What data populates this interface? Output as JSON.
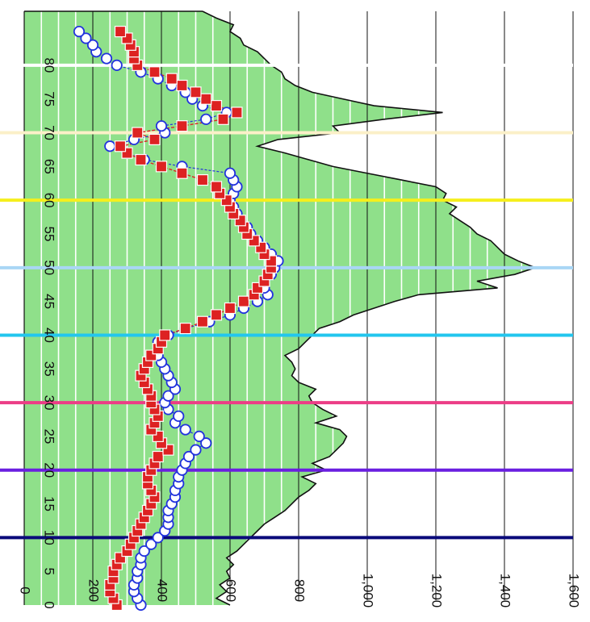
{
  "chart_data": {
    "type": "area",
    "orientation": "horizontal",
    "title": "",
    "xlabel": "",
    "ylabel": "",
    "xlim": [
      0,
      1600
    ],
    "ylim": [
      0,
      88
    ],
    "x_ticks": [
      {
        "value": 0,
        "label": "0"
      },
      {
        "value": 200,
        "label": "200"
      },
      {
        "value": 400,
        "label": "400"
      },
      {
        "value": 600,
        "label": "600"
      },
      {
        "value": 800,
        "label": "800"
      },
      {
        "value": 1000,
        "label": "1,000"
      },
      {
        "value": 1200,
        "label": "1,200"
      },
      {
        "value": 1400,
        "label": "1,400"
      },
      {
        "value": 1600,
        "label": "1,600"
      }
    ],
    "y_ticks": [
      {
        "value": 0,
        "label": "0"
      },
      {
        "value": 5,
        "label": "5"
      },
      {
        "value": 10,
        "label": "10"
      },
      {
        "value": 15,
        "label": "15"
      },
      {
        "value": 20,
        "label": "20"
      },
      {
        "value": 25,
        "label": "25"
      },
      {
        "value": 30,
        "label": "30"
      },
      {
        "value": 35,
        "label": "35"
      },
      {
        "value": 40,
        "label": "40"
      },
      {
        "value": 45,
        "label": "45"
      },
      {
        "value": 50,
        "label": "50"
      },
      {
        "value": 55,
        "label": "55"
      },
      {
        "value": 60,
        "label": "60"
      },
      {
        "value": 65,
        "label": "65"
      },
      {
        "value": 70,
        "label": "70"
      },
      {
        "value": 75,
        "label": "75"
      },
      {
        "value": 80,
        "label": "80"
      }
    ],
    "grid": true,
    "legend": "none",
    "colors": {
      "area_fill": "#8fe08a",
      "area_stroke": "#111111",
      "stripe": "#ffffff",
      "gridline": "#111111",
      "circle_series": "#2233dd",
      "square_series": "#dd2222"
    },
    "reference_lines": [
      {
        "y": 10,
        "color": "#0a0a7a"
      },
      {
        "y": 20,
        "color": "#6a1fe0"
      },
      {
        "y": 30,
        "color": "#ec3d86"
      },
      {
        "y": 40,
        "color": "#22c6ee"
      },
      {
        "y": 50,
        "color": "#a9d6f5"
      },
      {
        "y": 60,
        "color": "#f5ef1c"
      },
      {
        "y": 70,
        "color": "#fbf0c8"
      },
      {
        "y": 80,
        "color": "#ffffff"
      }
    ],
    "series": [
      {
        "mark": "area",
        "points": [
          [
            0,
            600
          ],
          [
            1,
            560
          ],
          [
            2,
            590
          ],
          [
            3,
            570
          ],
          [
            4,
            600
          ],
          [
            5,
            590
          ],
          [
            6,
            610
          ],
          [
            7,
            590
          ],
          [
            8,
            620
          ],
          [
            9,
            640
          ],
          [
            10,
            660
          ],
          [
            11,
            680
          ],
          [
            12,
            700
          ],
          [
            13,
            730
          ],
          [
            14,
            760
          ],
          [
            15,
            780
          ],
          [
            16,
            800
          ],
          [
            17,
            830
          ],
          [
            18,
            850
          ],
          [
            19,
            810
          ],
          [
            20,
            880
          ],
          [
            21,
            840
          ],
          [
            22,
            890
          ],
          [
            23,
            910
          ],
          [
            24,
            930
          ],
          [
            25,
            940
          ],
          [
            26,
            920
          ],
          [
            27,
            850
          ],
          [
            28,
            910
          ],
          [
            29,
            870
          ],
          [
            30,
            840
          ],
          [
            31,
            830
          ],
          [
            32,
            850
          ],
          [
            33,
            800
          ],
          [
            34,
            780
          ],
          [
            35,
            790
          ],
          [
            36,
            780
          ],
          [
            37,
            760
          ],
          [
            38,
            800
          ],
          [
            39,
            820
          ],
          [
            40,
            840
          ],
          [
            41,
            860
          ],
          [
            42,
            920
          ],
          [
            43,
            960
          ],
          [
            44,
            1020
          ],
          [
            45,
            1080
          ],
          [
            46,
            1150
          ],
          [
            47,
            1380
          ],
          [
            48,
            1320
          ],
          [
            49,
            1430
          ],
          [
            50,
            1490
          ],
          [
            51,
            1440
          ],
          [
            52,
            1400
          ],
          [
            53,
            1380
          ],
          [
            54,
            1360
          ],
          [
            55,
            1320
          ],
          [
            56,
            1300
          ],
          [
            57,
            1270
          ],
          [
            58,
            1240
          ],
          [
            59,
            1260
          ],
          [
            60,
            1220
          ],
          [
            61,
            1230
          ],
          [
            62,
            1200
          ],
          [
            63,
            1100
          ],
          [
            64,
            1000
          ],
          [
            65,
            900
          ],
          [
            66,
            830
          ],
          [
            67,
            760
          ],
          [
            68,
            680
          ],
          [
            69,
            740
          ],
          [
            70,
            920
          ],
          [
            71,
            900
          ],
          [
            72,
            1050
          ],
          [
            73,
            1220
          ],
          [
            74,
            1020
          ],
          [
            75,
            930
          ],
          [
            76,
            840
          ],
          [
            77,
            790
          ],
          [
            78,
            760
          ],
          [
            79,
            750
          ],
          [
            80,
            720
          ],
          [
            81,
            700
          ],
          [
            82,
            680
          ],
          [
            83,
            640
          ],
          [
            84,
            630
          ],
          [
            85,
            600
          ],
          [
            86,
            610
          ],
          [
            87,
            560
          ],
          [
            88,
            520
          ]
        ]
      },
      {
        "mark": "circle",
        "points": [
          [
            0,
            340
          ],
          [
            1,
            330
          ],
          [
            2,
            320
          ],
          [
            3,
            320
          ],
          [
            4,
            330
          ],
          [
            5,
            330
          ],
          [
            6,
            340
          ],
          [
            7,
            340
          ],
          [
            8,
            350
          ],
          [
            9,
            370
          ],
          [
            10,
            390
          ],
          [
            11,
            410
          ],
          [
            12,
            420
          ],
          [
            13,
            420
          ],
          [
            14,
            420
          ],
          [
            15,
            430
          ],
          [
            16,
            440
          ],
          [
            17,
            440
          ],
          [
            18,
            450
          ],
          [
            19,
            450
          ],
          [
            20,
            460
          ],
          [
            21,
            470
          ],
          [
            22,
            480
          ],
          [
            23,
            500
          ],
          [
            24,
            530
          ],
          [
            25,
            510
          ],
          [
            26,
            470
          ],
          [
            27,
            440
          ],
          [
            28,
            450
          ],
          [
            29,
            420
          ],
          [
            30,
            410
          ],
          [
            31,
            420
          ],
          [
            32,
            440
          ],
          [
            33,
            430
          ],
          [
            34,
            420
          ],
          [
            35,
            410
          ],
          [
            36,
            400
          ],
          [
            37,
            390
          ],
          [
            38,
            390
          ],
          [
            39,
            390
          ],
          [
            40,
            420
          ],
          [
            41,
            470
          ],
          [
            42,
            540
          ],
          [
            43,
            600
          ],
          [
            44,
            640
          ],
          [
            45,
            680
          ],
          [
            46,
            710
          ],
          [
            47,
            700
          ],
          [
            48,
            700
          ],
          [
            49,
            720
          ],
          [
            50,
            730
          ],
          [
            51,
            740
          ],
          [
            52,
            720
          ],
          [
            53,
            700
          ],
          [
            54,
            680
          ],
          [
            55,
            660
          ],
          [
            56,
            650
          ],
          [
            57,
            630
          ],
          [
            58,
            620
          ],
          [
            59,
            610
          ],
          [
            60,
            600
          ],
          [
            61,
            610
          ],
          [
            62,
            620
          ],
          [
            63,
            610
          ],
          [
            64,
            600
          ],
          [
            65,
            460
          ],
          [
            66,
            350
          ],
          [
            67,
            300
          ],
          [
            68,
            250
          ],
          [
            69,
            320
          ],
          [
            70,
            410
          ],
          [
            71,
            400
          ],
          [
            72,
            530
          ],
          [
            73,
            590
          ],
          [
            74,
            520
          ],
          [
            75,
            490
          ],
          [
            76,
            470
          ],
          [
            77,
            430
          ],
          [
            78,
            390
          ],
          [
            79,
            340
          ],
          [
            80,
            270
          ],
          [
            81,
            240
          ],
          [
            82,
            210
          ],
          [
            83,
            200
          ],
          [
            84,
            180
          ],
          [
            85,
            160
          ]
        ]
      },
      {
        "mark": "square",
        "points": [
          [
            0,
            270
          ],
          [
            1,
            260
          ],
          [
            2,
            250
          ],
          [
            3,
            250
          ],
          [
            4,
            260
          ],
          [
            5,
            260
          ],
          [
            6,
            270
          ],
          [
            7,
            280
          ],
          [
            8,
            300
          ],
          [
            9,
            310
          ],
          [
            10,
            320
          ],
          [
            11,
            330
          ],
          [
            12,
            340
          ],
          [
            13,
            350
          ],
          [
            14,
            360
          ],
          [
            15,
            370
          ],
          [
            16,
            380
          ],
          [
            17,
            370
          ],
          [
            18,
            360
          ],
          [
            19,
            360
          ],
          [
            20,
            370
          ],
          [
            21,
            380
          ],
          [
            22,
            390
          ],
          [
            23,
            420
          ],
          [
            24,
            400
          ],
          [
            25,
            390
          ],
          [
            26,
            370
          ],
          [
            27,
            380
          ],
          [
            28,
            390
          ],
          [
            29,
            380
          ],
          [
            30,
            370
          ],
          [
            31,
            370
          ],
          [
            32,
            360
          ],
          [
            33,
            350
          ],
          [
            34,
            340
          ],
          [
            35,
            350
          ],
          [
            36,
            360
          ],
          [
            37,
            370
          ],
          [
            38,
            390
          ],
          [
            39,
            400
          ],
          [
            40,
            410
          ],
          [
            41,
            470
          ],
          [
            42,
            520
          ],
          [
            43,
            560
          ],
          [
            44,
            600
          ],
          [
            45,
            640
          ],
          [
            46,
            670
          ],
          [
            47,
            680
          ],
          [
            48,
            700
          ],
          [
            49,
            710
          ],
          [
            50,
            720
          ],
          [
            51,
            720
          ],
          [
            52,
            700
          ],
          [
            53,
            690
          ],
          [
            54,
            670
          ],
          [
            55,
            650
          ],
          [
            56,
            640
          ],
          [
            57,
            630
          ],
          [
            58,
            610
          ],
          [
            59,
            600
          ],
          [
            60,
            590
          ],
          [
            61,
            570
          ],
          [
            62,
            560
          ],
          [
            63,
            520
          ],
          [
            64,
            460
          ],
          [
            65,
            400
          ],
          [
            66,
            340
          ],
          [
            67,
            300
          ],
          [
            68,
            280
          ],
          [
            69,
            380
          ],
          [
            70,
            330
          ],
          [
            71,
            460
          ],
          [
            72,
            580
          ],
          [
            73,
            620
          ],
          [
            74,
            560
          ],
          [
            75,
            530
          ],
          [
            76,
            500
          ],
          [
            77,
            460
          ],
          [
            78,
            430
          ],
          [
            79,
            380
          ],
          [
            80,
            330
          ],
          [
            81,
            320
          ],
          [
            82,
            320
          ],
          [
            83,
            310
          ],
          [
            84,
            300
          ],
          [
            85,
            280
          ]
        ]
      }
    ]
  }
}
